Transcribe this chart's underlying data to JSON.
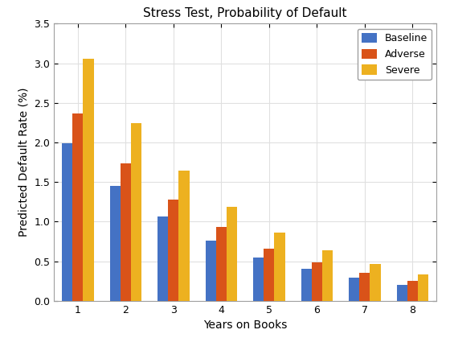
{
  "title": "Stress Test, Probability of Default",
  "xlabel": "Years on Books",
  "ylabel": "Predicted Default Rate (%)",
  "categories": [
    1,
    2,
    3,
    4,
    5,
    6,
    7,
    8
  ],
  "baseline": [
    1.99,
    1.45,
    1.06,
    0.76,
    0.55,
    0.4,
    0.29,
    0.2
  ],
  "adverse": [
    2.37,
    1.74,
    1.28,
    0.93,
    0.66,
    0.49,
    0.35,
    0.25
  ],
  "severe": [
    3.06,
    2.24,
    1.64,
    1.19,
    0.86,
    0.64,
    0.47,
    0.33
  ],
  "colors": {
    "baseline": "#4472c4",
    "adverse": "#d95319",
    "severe": "#edb120"
  },
  "ylim": [
    0,
    3.5
  ],
  "yticks": [
    0,
    0.5,
    1.0,
    1.5,
    2.0,
    2.5,
    3.0,
    3.5
  ],
  "legend_labels": [
    "Baseline",
    "Adverse",
    "Severe"
  ],
  "bar_width": 0.22,
  "title_fontsize": 11,
  "label_fontsize": 10,
  "tick_fontsize": 9,
  "legend_fontsize": 9,
  "background_color": "#ffffff",
  "grid_color": "#e0e0e0"
}
